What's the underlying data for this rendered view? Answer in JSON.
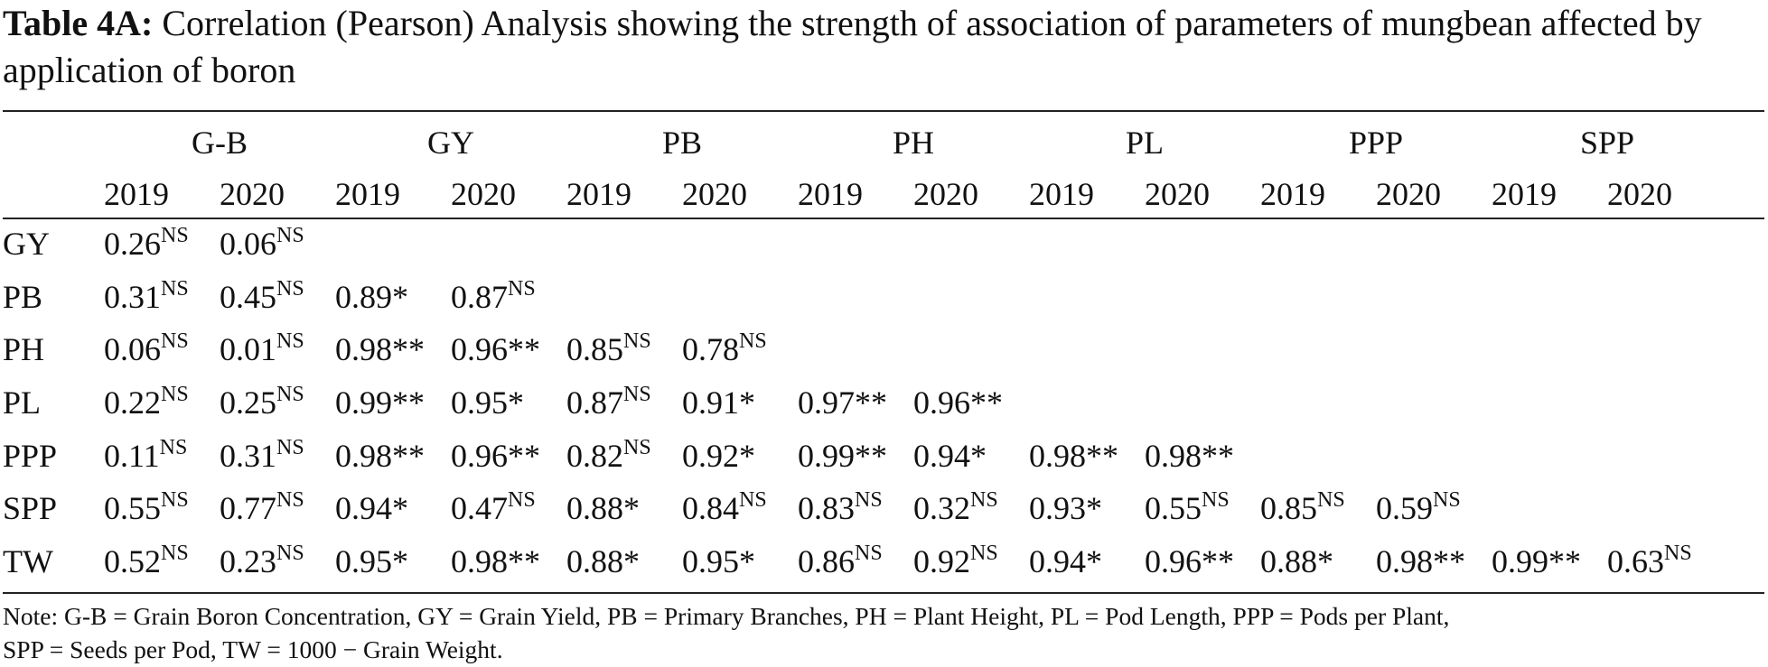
{
  "caption": {
    "label": "Table 4A:",
    "text": "Correlation (Pearson) Analysis showing the strength of association of parameters of mungbean affected by application of boron"
  },
  "table": {
    "groups": [
      "G-B",
      "GY",
      "PB",
      "PH",
      "PL",
      "PPP",
      "SPP"
    ],
    "years": [
      "2019",
      "2020",
      "2019",
      "2020",
      "2019",
      "2020",
      "2019",
      "2020",
      "2019",
      "2020",
      "2019",
      "2020",
      "2019",
      "2020"
    ],
    "rows": [
      {
        "label": "GY",
        "cells": [
          {
            "v": "0.26",
            "s": "NS"
          },
          {
            "v": "0.06",
            "s": "NS"
          },
          {
            "v": "",
            "s": ""
          },
          {
            "v": "",
            "s": ""
          },
          {
            "v": "",
            "s": ""
          },
          {
            "v": "",
            "s": ""
          },
          {
            "v": "",
            "s": ""
          },
          {
            "v": "",
            "s": ""
          },
          {
            "v": "",
            "s": ""
          },
          {
            "v": "",
            "s": ""
          },
          {
            "v": "",
            "s": ""
          },
          {
            "v": "",
            "s": ""
          },
          {
            "v": "",
            "s": ""
          },
          {
            "v": "",
            "s": ""
          }
        ]
      },
      {
        "label": "PB",
        "cells": [
          {
            "v": "0.31",
            "s": "NS"
          },
          {
            "v": "0.45",
            "s": "NS"
          },
          {
            "v": "0.89*",
            "s": ""
          },
          {
            "v": "0.87",
            "s": "NS"
          },
          {
            "v": "",
            "s": ""
          },
          {
            "v": "",
            "s": ""
          },
          {
            "v": "",
            "s": ""
          },
          {
            "v": "",
            "s": ""
          },
          {
            "v": "",
            "s": ""
          },
          {
            "v": "",
            "s": ""
          },
          {
            "v": "",
            "s": ""
          },
          {
            "v": "",
            "s": ""
          },
          {
            "v": "",
            "s": ""
          },
          {
            "v": "",
            "s": ""
          }
        ]
      },
      {
        "label": "PH",
        "cells": [
          {
            "v": "0.06",
            "s": "NS"
          },
          {
            "v": "0.01",
            "s": "NS"
          },
          {
            "v": "0.98**",
            "s": ""
          },
          {
            "v": "0.96**",
            "s": ""
          },
          {
            "v": "0.85",
            "s": "NS"
          },
          {
            "v": "0.78",
            "s": "NS"
          },
          {
            "v": "",
            "s": ""
          },
          {
            "v": "",
            "s": ""
          },
          {
            "v": "",
            "s": ""
          },
          {
            "v": "",
            "s": ""
          },
          {
            "v": "",
            "s": ""
          },
          {
            "v": "",
            "s": ""
          },
          {
            "v": "",
            "s": ""
          },
          {
            "v": "",
            "s": ""
          }
        ]
      },
      {
        "label": "PL",
        "cells": [
          {
            "v": "0.22",
            "s": "NS"
          },
          {
            "v": "0.25",
            "s": "NS"
          },
          {
            "v": "0.99**",
            "s": ""
          },
          {
            "v": "0.95*",
            "s": ""
          },
          {
            "v": "0.87",
            "s": "NS"
          },
          {
            "v": "0.91*",
            "s": ""
          },
          {
            "v": "0.97**",
            "s": ""
          },
          {
            "v": "0.96**",
            "s": ""
          },
          {
            "v": "",
            "s": ""
          },
          {
            "v": "",
            "s": ""
          },
          {
            "v": "",
            "s": ""
          },
          {
            "v": "",
            "s": ""
          },
          {
            "v": "",
            "s": ""
          },
          {
            "v": "",
            "s": ""
          }
        ]
      },
      {
        "label": "PPP",
        "cells": [
          {
            "v": "0.11",
            "s": "NS"
          },
          {
            "v": "0.31",
            "s": "NS"
          },
          {
            "v": "0.98**",
            "s": ""
          },
          {
            "v": "0.96**",
            "s": ""
          },
          {
            "v": "0.82",
            "s": "NS"
          },
          {
            "v": "0.92*",
            "s": ""
          },
          {
            "v": "0.99**",
            "s": ""
          },
          {
            "v": "0.94*",
            "s": ""
          },
          {
            "v": "0.98**",
            "s": ""
          },
          {
            "v": "0.98**",
            "s": ""
          },
          {
            "v": "",
            "s": ""
          },
          {
            "v": "",
            "s": ""
          },
          {
            "v": "",
            "s": ""
          },
          {
            "v": "",
            "s": ""
          }
        ]
      },
      {
        "label": "SPP",
        "cells": [
          {
            "v": "0.55",
            "s": "NS"
          },
          {
            "v": "0.77",
            "s": "NS"
          },
          {
            "v": "0.94*",
            "s": ""
          },
          {
            "v": "0.47",
            "s": "NS"
          },
          {
            "v": "0.88*",
            "s": ""
          },
          {
            "v": "0.84",
            "s": "NS"
          },
          {
            "v": "0.83",
            "s": "NS"
          },
          {
            "v": "0.32",
            "s": "NS"
          },
          {
            "v": "0.93*",
            "s": ""
          },
          {
            "v": "0.55",
            "s": "NS"
          },
          {
            "v": "0.85",
            "s": "NS"
          },
          {
            "v": "0.59",
            "s": "NS"
          },
          {
            "v": "",
            "s": ""
          },
          {
            "v": "",
            "s": ""
          }
        ]
      },
      {
        "label": "TW",
        "cells": [
          {
            "v": "0.52",
            "s": "NS"
          },
          {
            "v": "0.23",
            "s": "NS"
          },
          {
            "v": "0.95*",
            "s": ""
          },
          {
            "v": "0.98**",
            "s": ""
          },
          {
            "v": "0.88*",
            "s": ""
          },
          {
            "v": "0.95*",
            "s": ""
          },
          {
            "v": "0.86",
            "s": "NS"
          },
          {
            "v": "0.92",
            "s": "NS"
          },
          {
            "v": "0.94*",
            "s": ""
          },
          {
            "v": "0.96**",
            "s": ""
          },
          {
            "v": "0.88*",
            "s": ""
          },
          {
            "v": "0.98**",
            "s": ""
          },
          {
            "v": "0.99**",
            "s": ""
          },
          {
            "v": "0.63",
            "s": "NS"
          }
        ]
      }
    ]
  },
  "note": {
    "line1": "Note: G-B = Grain Boron Concentration, GY = Grain Yield, PB = Primary Branches, PH = Plant Height, PL = Pod Length, PPP = Pods per Plant,",
    "line2": "SPP = Seeds per Pod, TW = 1000 − Grain Weight."
  }
}
